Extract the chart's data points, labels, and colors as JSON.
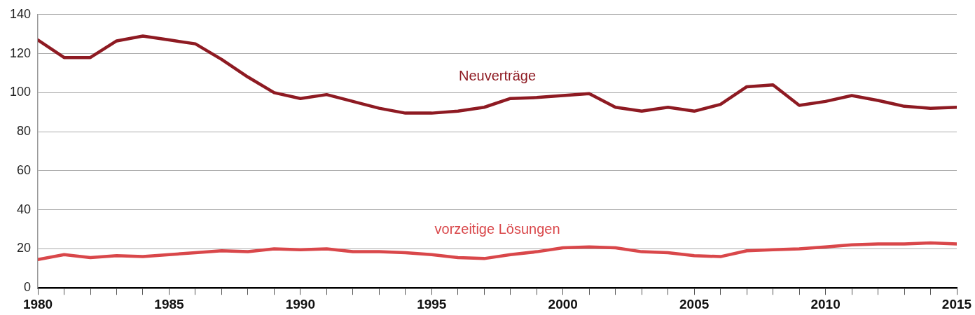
{
  "chart_data": {
    "type": "line",
    "x": [
      1980,
      1981,
      1982,
      1983,
      1984,
      1985,
      1986,
      1987,
      1988,
      1989,
      1990,
      1991,
      1992,
      1993,
      1994,
      1995,
      1996,
      1997,
      1998,
      1999,
      2000,
      2001,
      2002,
      2003,
      2004,
      2005,
      2006,
      2007,
      2008,
      2009,
      2010,
      2011,
      2012,
      2013,
      2014,
      2015
    ],
    "series": [
      {
        "name": "Neuverträge",
        "color": "#8e1a22",
        "values": [
          127,
          118,
          118,
          126.5,
          129,
          127,
          125,
          117,
          108,
          100,
          97,
          99,
          95.5,
          92,
          89.5,
          89.5,
          90.5,
          92.5,
          97,
          97.5,
          98.5,
          99.5,
          92.5,
          90.5,
          92.5,
          90.5,
          94,
          103,
          104,
          93.5,
          95.5,
          98.5,
          96,
          93,
          92,
          92.5
        ]
      },
      {
        "name": "vorzeitige Lösungen",
        "color": "#d9474a",
        "values": [
          14.5,
          17,
          15.5,
          16.5,
          16,
          17,
          18,
          19,
          18.5,
          20,
          19.5,
          20,
          18.5,
          18.5,
          18,
          17,
          15.5,
          15,
          17,
          18.5,
          20.5,
          21,
          20.5,
          18.5,
          18,
          16.5,
          16,
          19,
          19.5,
          20,
          21,
          22,
          22.5,
          22.5,
          23,
          22.5
        ]
      }
    ],
    "xlim": [
      1980,
      2015
    ],
    "xticks": [
      1980,
      {
        "value": 1981,
        "label": null
      },
      {
        "value": 1982,
        "label": null
      },
      {
        "value": 1983,
        "label": null
      },
      {
        "value": 1984,
        "label": null
      },
      1985,
      {
        "value": 1986,
        "label": null
      },
      {
        "value": 1987,
        "label": null
      },
      {
        "value": 1988,
        "label": null
      },
      {
        "value": 1989,
        "label": null
      },
      1990,
      {
        "value": 1991,
        "label": null
      },
      {
        "value": 1992,
        "label": null
      },
      {
        "value": 1993,
        "label": null
      },
      {
        "value": 1994,
        "label": null
      },
      1995,
      {
        "value": 1996,
        "label": null
      },
      {
        "value": 1997,
        "label": null
      },
      {
        "value": 1998,
        "label": null
      },
      {
        "value": 1999,
        "label": null
      },
      2000,
      {
        "value": 2001,
        "label": null
      },
      {
        "value": 2002,
        "label": null
      },
      {
        "value": 2003,
        "label": null
      },
      {
        "value": 2004,
        "label": null
      },
      2005,
      {
        "value": 2006,
        "label": null
      },
      {
        "value": 2007,
        "label": null
      },
      {
        "value": 2008,
        "label": null
      },
      {
        "value": 2009,
        "label": null
      },
      2010,
      {
        "value": 2011,
        "label": null
      },
      {
        "value": 2012,
        "label": null
      },
      {
        "value": 2013,
        "label": null
      },
      {
        "value": 2014,
        "label": null
      },
      2015
    ],
    "ylim": [
      0,
      140
    ],
    "yticks": [
      0,
      20,
      40,
      60,
      80,
      100,
      120,
      140
    ],
    "grid": "y",
    "legend": false,
    "marker": "none",
    "line_style": "solid"
  }
}
